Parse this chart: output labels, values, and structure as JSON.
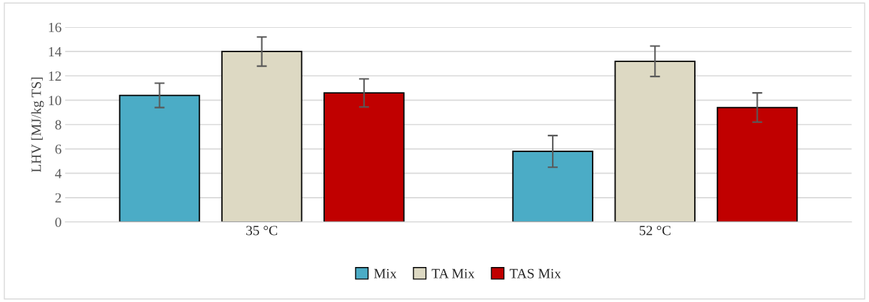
{
  "chart_data": {
    "type": "bar",
    "ylabel": "LHV [MJ/kg TS]",
    "categories": [
      "35 °C",
      "52 °C"
    ],
    "series": [
      {
        "name": "Mix",
        "color": "#4bacc6",
        "values": [
          10.4,
          5.8
        ],
        "errors": [
          1.0,
          1.3
        ]
      },
      {
        "name": "TA Mix",
        "color": "#ddd9c3",
        "values": [
          14.0,
          13.2
        ],
        "errors": [
          1.2,
          1.25
        ]
      },
      {
        "name": "TAS Mix",
        "color": "#c00000",
        "values": [
          10.6,
          9.4
        ],
        "errors": [
          1.15,
          1.2
        ]
      }
    ],
    "ylim": [
      0,
      16
    ],
    "yticks": [
      0,
      2,
      4,
      6,
      8,
      10,
      12,
      14,
      16
    ],
    "grid": "y",
    "legend": "bottom"
  }
}
